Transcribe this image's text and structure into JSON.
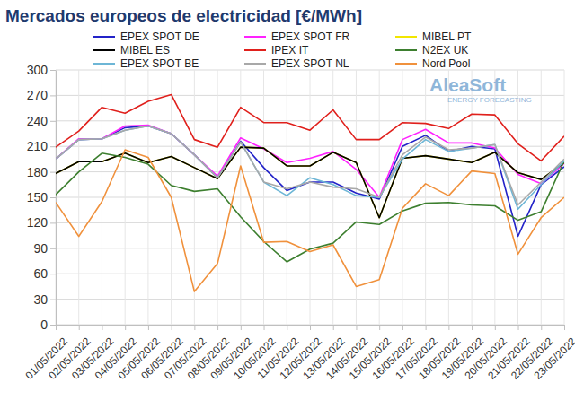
{
  "chart_data": {
    "type": "line",
    "title": "Mercados europeos de electricidad [€/MWh]",
    "annotations": [
      "AleaSoft",
      "ENERGY FORECASTING"
    ],
    "x": [
      "01/05/2022",
      "02/05/2022",
      "03/05/2022",
      "04/05/2022",
      "05/05/2022",
      "06/05/2022",
      "07/05/2022",
      "08/05/2022",
      "09/05/2022",
      "10/05/2022",
      "11/05/2022",
      "12/05/2022",
      "13/05/2022",
      "14/05/2022",
      "15/05/2022",
      "16/05/2022",
      "17/05/2022",
      "18/05/2022",
      "19/05/2022",
      "20/05/2022",
      "21/05/2022",
      "22/05/2022",
      "23/05/2022"
    ],
    "ylim": [
      0,
      300
    ],
    "yticks": [
      0,
      30,
      60,
      90,
      120,
      150,
      180,
      210,
      240,
      270,
      300
    ],
    "grid": true,
    "legend": "top",
    "series": [
      {
        "name": "EPEX SPOT DE",
        "color": "#2323c8",
        "values": [
          195,
          218,
          219,
          232,
          234,
          225,
          200,
          173,
          216,
          185,
          158,
          168,
          168,
          155,
          148,
          210,
          223,
          204,
          210,
          207,
          104,
          165,
          186
        ]
      },
      {
        "name": "EPEX SPOT FR",
        "color": "#ff22ff",
        "values": [
          195,
          219,
          219,
          234,
          235,
          225,
          200,
          175,
          220,
          207,
          191,
          196,
          204,
          183,
          150,
          218,
          230,
          214,
          214,
          208,
          177,
          166,
          190
        ]
      },
      {
        "name": "MIBEL PT",
        "color": "#f2e600",
        "values": [
          178,
          192,
          192,
          202,
          191,
          198,
          185,
          172,
          209,
          208,
          187,
          187,
          203,
          191,
          126,
          196,
          199,
          195,
          191,
          203,
          179,
          171,
          191
        ]
      },
      {
        "name": "MIBEL ES",
        "color": "#000000",
        "values": [
          178,
          192,
          192,
          202,
          191,
          198,
          185,
          172,
          209,
          208,
          187,
          187,
          203,
          191,
          126,
          196,
          199,
          195,
          191,
          203,
          179,
          171,
          191
        ]
      },
      {
        "name": "IPEX IT",
        "color": "#e0201c",
        "values": [
          209,
          228,
          256,
          249,
          263,
          271,
          218,
          209,
          256,
          238,
          238,
          229,
          253,
          218,
          218,
          238,
          237,
          231,
          248,
          247,
          213,
          193,
          222
        ]
      },
      {
        "name": "N2EX UK",
        "color": "#3d7f2f",
        "values": [
          153,
          180,
          202,
          197,
          189,
          164,
          157,
          160,
          127,
          98,
          74,
          89,
          96,
          121,
          118,
          134,
          143,
          144,
          141,
          140,
          123,
          133,
          193
        ]
      },
      {
        "name": "EPEX SPOT BE",
        "color": "#6db6d6",
        "values": [
          195,
          218,
          219,
          229,
          234,
          225,
          200,
          173,
          215,
          168,
          152,
          173,
          165,
          152,
          150,
          195,
          218,
          204,
          208,
          212,
          136,
          165,
          193
        ]
      },
      {
        "name": "EPEX SPOT NL",
        "color": "#a8a8a8",
        "values": [
          195,
          218,
          219,
          229,
          234,
          225,
          200,
          173,
          215,
          168,
          160,
          168,
          162,
          160,
          150,
          200,
          221,
          206,
          208,
          212,
          141,
          168,
          195
        ]
      },
      {
        "name": "Nord Pool",
        "color": "#f0913c",
        "values": [
          144,
          104,
          145,
          206,
          197,
          150,
          39,
          72,
          187,
          97,
          98,
          86,
          94,
          45,
          53,
          137,
          166,
          152,
          181,
          178,
          83,
          126,
          150
        ]
      }
    ]
  }
}
